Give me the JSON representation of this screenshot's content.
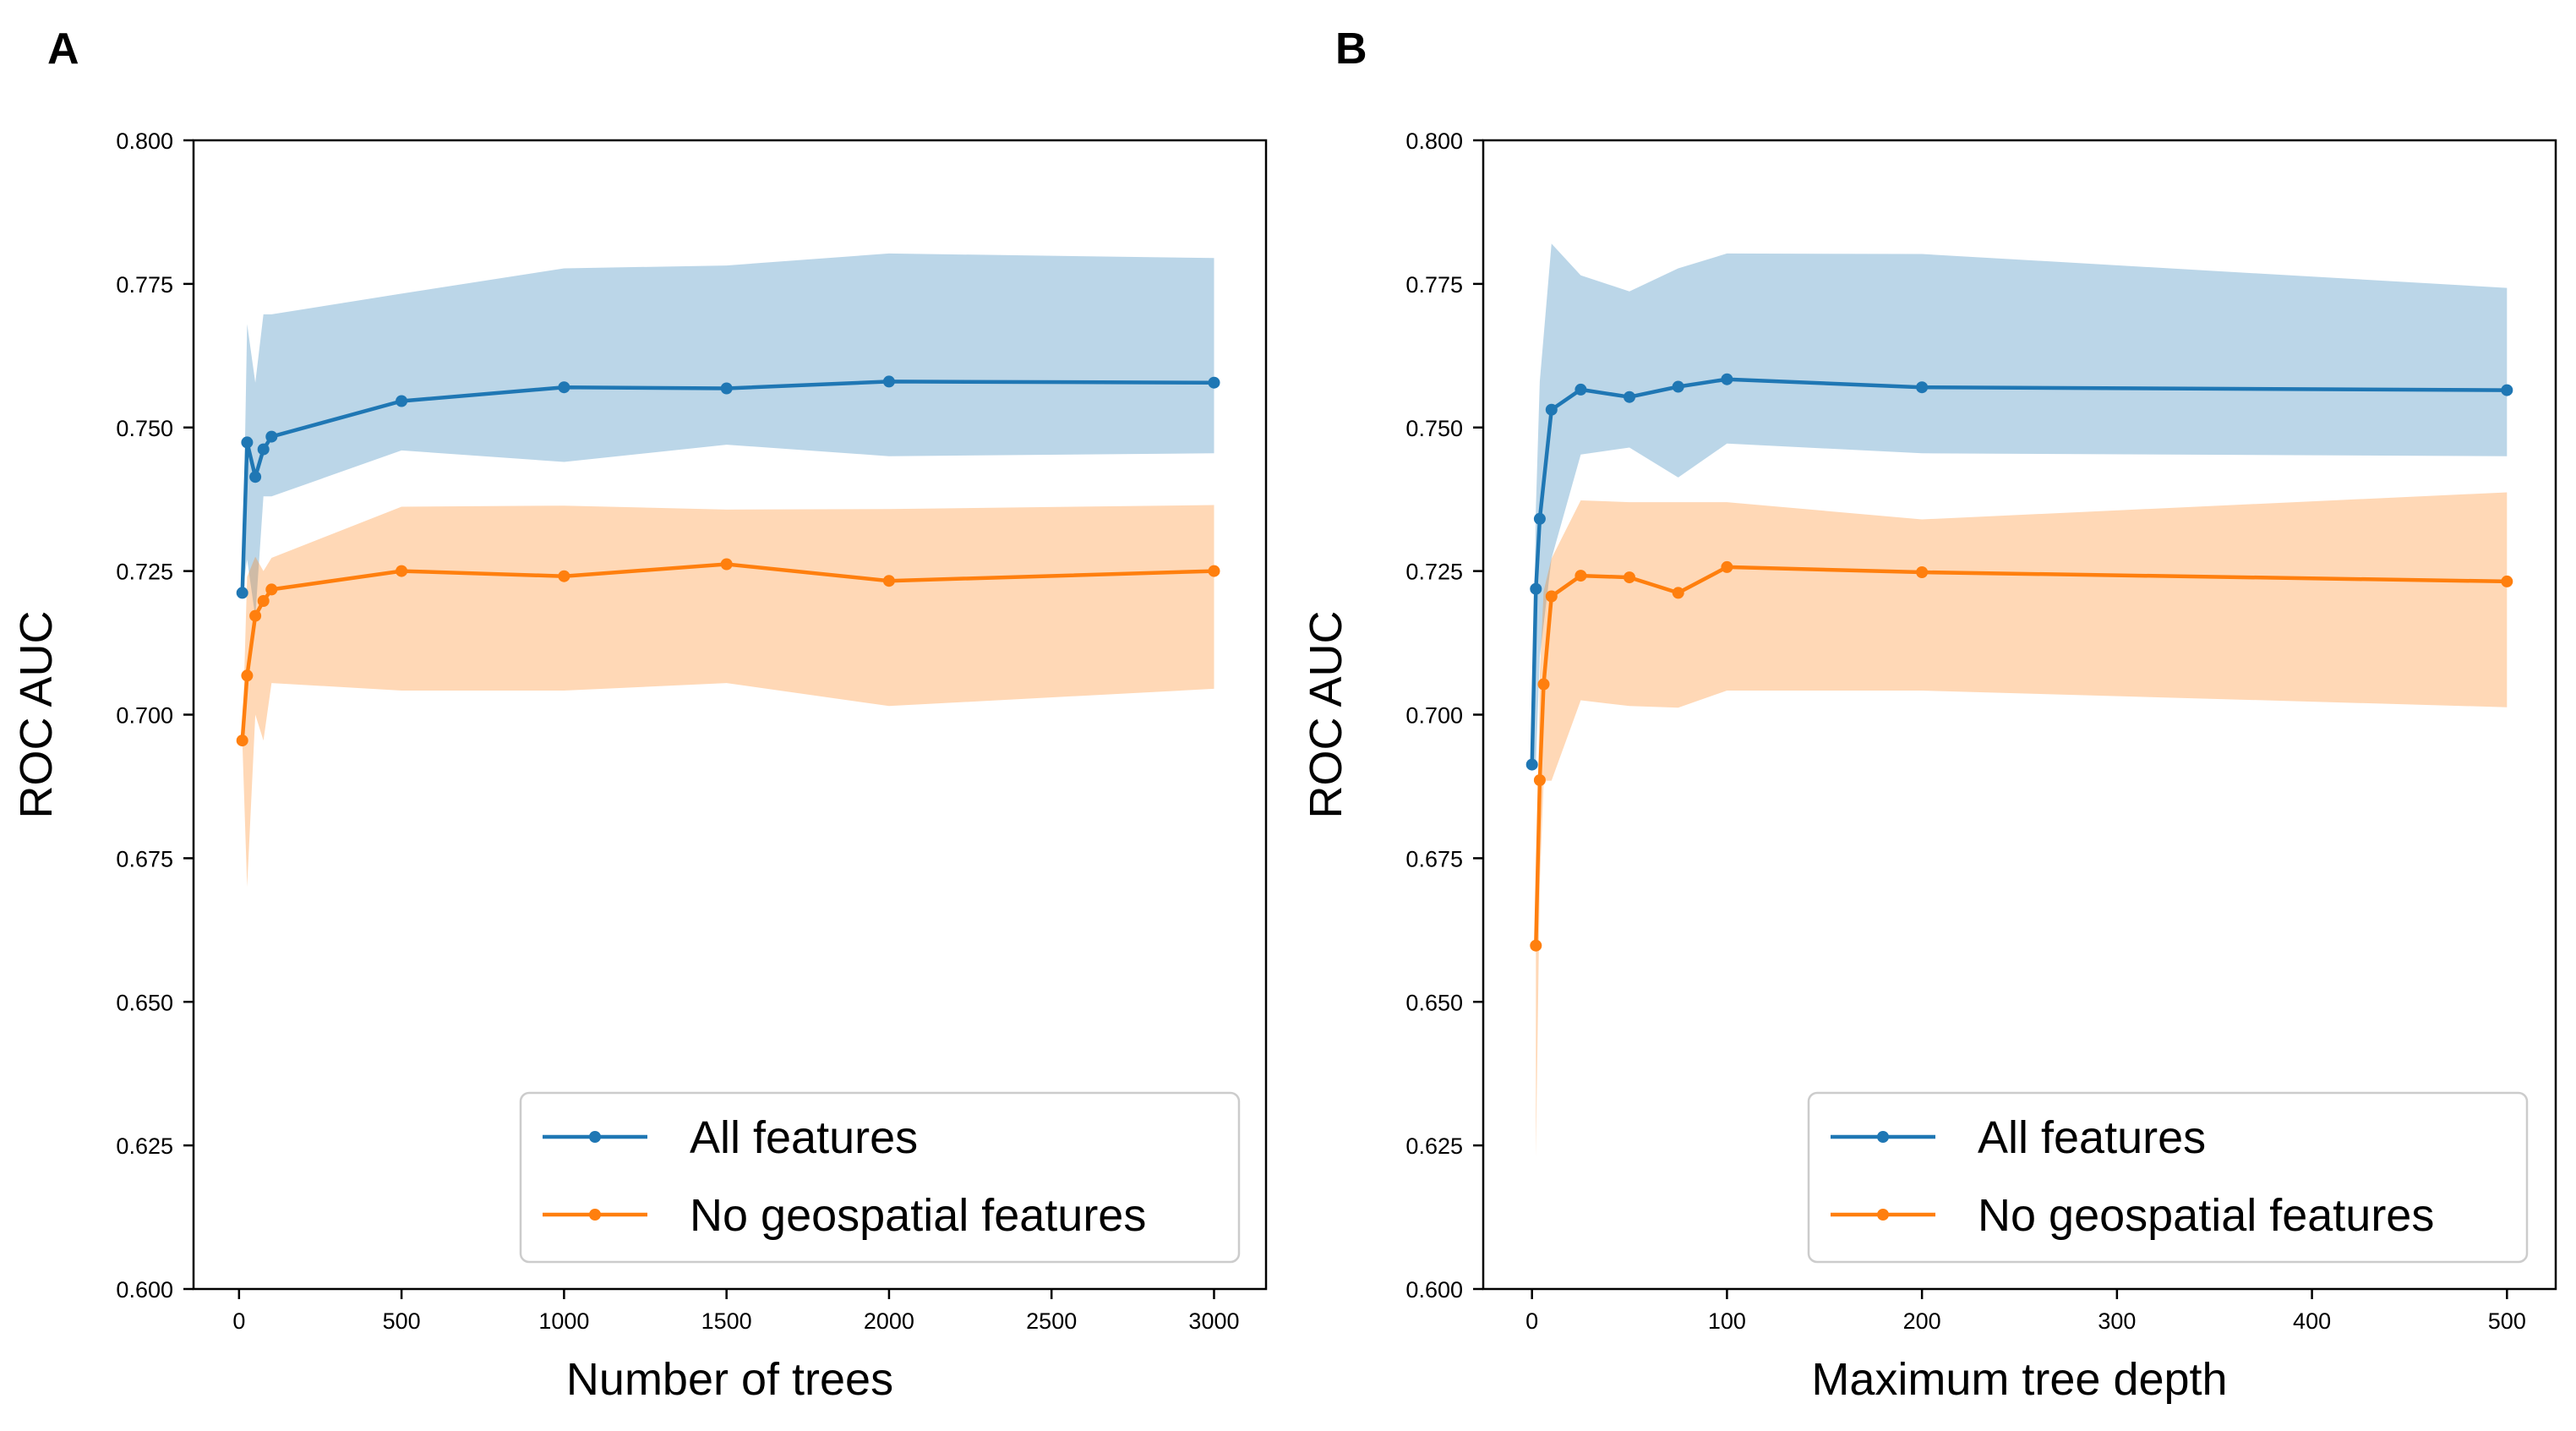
{
  "colors": {
    "all": "#1f77b4",
    "nogeo": "#ff7f0e",
    "all_band": "#1f77b4",
    "nogeo_band": "#ff7f0e"
  },
  "chart_data": [
    {
      "type": "line",
      "panel_label": "A",
      "xlabel": "Number of trees",
      "ylabel": "ROC AUC",
      "xlim": [
        -140,
        3160
      ],
      "ylim": [
        0.6,
        0.8
      ],
      "xticks": [
        0,
        500,
        1000,
        1500,
        2000,
        2500,
        3000
      ],
      "yticks": [
        0.6,
        0.625,
        0.65,
        0.675,
        0.7,
        0.725,
        0.75,
        0.775,
        0.8
      ],
      "legend_position": "lower-right",
      "series": [
        {
          "name": "All features",
          "color_key": "all",
          "x": [
            10,
            25,
            50,
            75,
            100,
            500,
            1000,
            1500,
            2000,
            3000
          ],
          "y": [
            0.7212,
            0.7474,
            0.7414,
            0.7462,
            0.7484,
            0.7546,
            0.757,
            0.7568,
            0.758,
            0.7578
          ],
          "lower": [
            0.7212,
            0.727,
            0.717,
            0.738,
            0.738,
            0.746,
            0.744,
            0.747,
            0.745,
            0.7455
          ],
          "upper": [
            0.7212,
            0.768,
            0.7578,
            0.7697,
            0.7697,
            0.7733,
            0.7777,
            0.7782,
            0.7803,
            0.7795
          ]
        },
        {
          "name": "No geospatial features",
          "color_key": "nogeo",
          "x": [
            10,
            25,
            50,
            75,
            100,
            500,
            1000,
            1500,
            2000,
            3000
          ],
          "y": [
            0.6955,
            0.7068,
            0.7172,
            0.7198,
            0.7218,
            0.725,
            0.7241,
            0.7262,
            0.7233,
            0.725
          ],
          "lower": [
            0.6955,
            0.67,
            0.7,
            0.6955,
            0.7055,
            0.7042,
            0.7042,
            0.7055,
            0.7015,
            0.7045
          ],
          "upper": [
            0.6955,
            0.724,
            0.7275,
            0.725,
            0.7273,
            0.7362,
            0.7364,
            0.7357,
            0.7358,
            0.7365
          ]
        }
      ]
    },
    {
      "type": "line",
      "panel_label": "B",
      "xlabel": "Maximum tree depth",
      "ylabel": "ROC AUC",
      "xlim": [
        -25,
        525
      ],
      "ylim": [
        0.6,
        0.8
      ],
      "xticks": [
        0,
        100,
        200,
        300,
        400,
        500
      ],
      "yticks": [
        0.6,
        0.625,
        0.65,
        0.675,
        0.7,
        0.725,
        0.75,
        0.775,
        0.8
      ],
      "legend_position": "lower-right",
      "series": [
        {
          "name": "All features",
          "color_key": "all",
          "x": [
            0,
            2,
            4,
            10,
            25,
            50,
            75,
            100,
            200,
            500
          ],
          "y": [
            0.6913,
            0.7219,
            0.7341,
            0.7531,
            0.7566,
            0.7553,
            0.7571,
            0.7584,
            0.757,
            0.7565
          ],
          "lower": [
            0.6913,
            0.6913,
            0.71,
            0.7272,
            0.7453,
            0.7465,
            0.7413,
            0.7472,
            0.7455,
            0.745
          ],
          "upper": [
            0.6913,
            0.736,
            0.758,
            0.782,
            0.7765,
            0.7737,
            0.7777,
            0.7803,
            0.7802,
            0.7743
          ]
        },
        {
          "name": "No geospatial features",
          "color_key": "nogeo",
          "x": [
            2,
            4,
            6,
            10,
            25,
            50,
            75,
            100,
            200,
            500
          ],
          "y": [
            0.6598,
            0.6886,
            0.7053,
            0.7206,
            0.7242,
            0.7239,
            0.7212,
            0.7257,
            0.7248,
            0.7232
          ],
          "lower": [
            0.623,
            0.6705,
            0.6885,
            0.6885,
            0.7025,
            0.7015,
            0.7012,
            0.7042,
            0.7042,
            0.7013
          ],
          "upper": [
            0.6598,
            0.707,
            0.7215,
            0.7272,
            0.7373,
            0.737,
            0.737,
            0.737,
            0.734,
            0.7387
          ]
        }
      ]
    }
  ]
}
